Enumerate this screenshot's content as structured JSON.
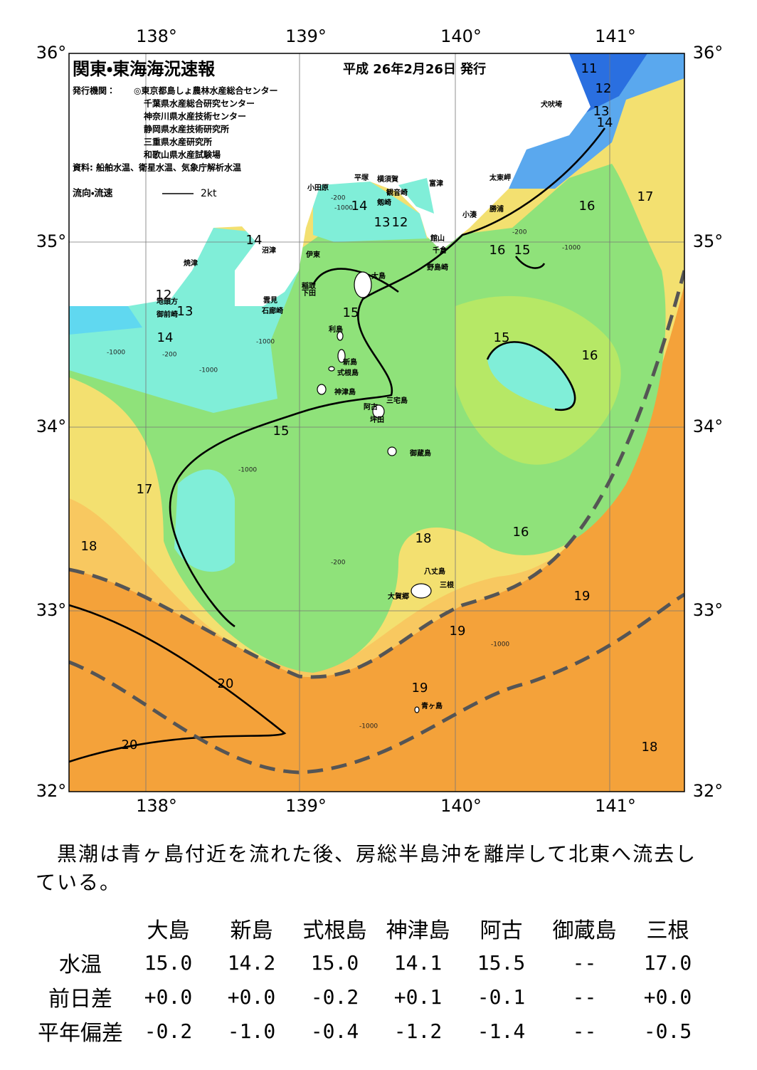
{
  "header": {
    "title": "関東・東海海況速報",
    "date": "平成 26年2月26日 発行",
    "issuer_label": "発行機関：",
    "issuers": [
      "◎東京都島しょ農林水産総合センター",
      "千葉県水産総合研究センター",
      "神奈川県水産技術センター",
      "静岡県水産技術研究所",
      "三重県水産研究所",
      "和歌山県水産試験場"
    ],
    "source": "資料: 船舶水温、衛星水温、気象庁解析水温",
    "current_legend": "流向・流速",
    "current_scale": "2kt"
  },
  "map": {
    "lon_labels": [
      "138°",
      "139°",
      "140°",
      "141°"
    ],
    "lat_labels": [
      "36°",
      "35°",
      "34°",
      "33°",
      "32°"
    ],
    "places": [
      "犬吠埼",
      "太東岬",
      "勝浦",
      "小湊",
      "館山",
      "千倉",
      "野島崎",
      "富津",
      "観音崎",
      "横須賀",
      "剱崎",
      "平塚",
      "小田原",
      "伊東",
      "沼津",
      "焼津",
      "稲取",
      "下田",
      "雲見",
      "石廊崎",
      "地頭方",
      "御前崎",
      "大島",
      "利島",
      "新島",
      "式根島",
      "神津島",
      "三宅島",
      "阿古",
      "坪田",
      "御蔵島",
      "八丈島",
      "三根",
      "大賀郷",
      "青ヶ島"
    ],
    "isotherm_labels": [
      11,
      12,
      13,
      14,
      17,
      16,
      14,
      13,
      12,
      14,
      16,
      15,
      12,
      13,
      15,
      14,
      15,
      16,
      15,
      17,
      16,
      18,
      18,
      19,
      19,
      20,
      19,
      20,
      18
    ],
    "depth_labels": [
      "-200",
      "-1000",
      "-200",
      "-1000",
      "-1000",
      "-200",
      "-1000",
      "-1000",
      "-1000",
      "-200",
      "-1000",
      "-1000"
    ]
  },
  "text": {
    "paragraph": "黒潮は青ヶ島付近を流れた後、房総半島沖を離岸して北東へ流去している。"
  },
  "table": {
    "columns": [
      "大島",
      "新島",
      "式根島",
      "神津島",
      "阿古",
      "御蔵島",
      "三根"
    ],
    "rows": [
      {
        "label": "水温",
        "values": [
          "15.0",
          "14.2",
          "15.0",
          "14.1",
          "15.5",
          "--",
          "17.0"
        ]
      },
      {
        "label": "前日差",
        "values": [
          "+0.0",
          "+0.0",
          "-0.2",
          "+0.1",
          "-0.1",
          "--",
          "+0.0"
        ]
      },
      {
        "label": "平年偏差",
        "values": [
          "-0.2",
          "-1.0",
          "-0.4",
          "-1.2",
          "-1.4",
          "--",
          "-0.5"
        ]
      }
    ]
  }
}
